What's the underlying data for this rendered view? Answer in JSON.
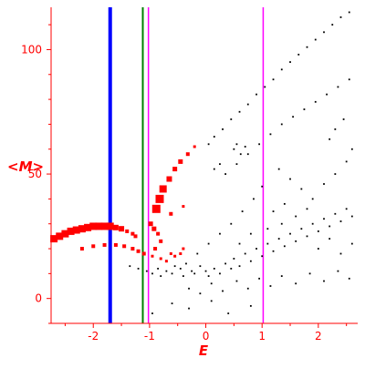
{
  "chart_data": {
    "type": "scatter",
    "title": "",
    "xlabel": "E",
    "ylabel": "<M>",
    "xlim": [
      -2.75,
      2.7
    ],
    "ylim": [
      -10,
      117
    ],
    "x_ticks": [
      -2,
      -1,
      0,
      1,
      2
    ],
    "y_ticks": [
      0,
      50,
      100
    ],
    "x_tick_labels": [
      "-2",
      "-1",
      "0",
      "1",
      "2"
    ],
    "y_tick_labels": [
      "0",
      "50",
      "100"
    ],
    "grid": false,
    "legend": "none",
    "colors": {
      "axes": "#ff0000",
      "black_points": "#000000",
      "red_points": "#ff0000",
      "blue_line": "#0000ff",
      "green_line": "#008000",
      "magenta_line": "#ff00ff"
    },
    "vertical_lines": [
      {
        "x": -1.7,
        "color": "#0000ff",
        "width": 4
      },
      {
        "x": -1.12,
        "color": "#008000",
        "width": 2
      },
      {
        "x": -1.02,
        "color": "#ff00ff",
        "width": 1.5
      },
      {
        "x": 1.02,
        "color": "#ff00ff",
        "width": 1.5
      }
    ],
    "series": [
      {
        "color": "#ff0000",
        "style": "dotted lower arc",
        "points": [
          {
            "x": -2.7,
            "y": 24,
            "size": 4
          },
          {
            "x": -2.6,
            "y": 25,
            "size": 4
          },
          {
            "x": -2.5,
            "y": 26,
            "size": 4
          },
          {
            "x": -2.4,
            "y": 27,
            "size": 4
          },
          {
            "x": -2.3,
            "y": 27.5,
            "size": 4
          },
          {
            "x": -2.2,
            "y": 28,
            "size": 4
          },
          {
            "x": -2.1,
            "y": 28.5,
            "size": 4
          },
          {
            "x": -2.0,
            "y": 29,
            "size": 4
          },
          {
            "x": -1.9,
            "y": 29,
            "size": 4
          },
          {
            "x": -1.8,
            "y": 29,
            "size": 4
          },
          {
            "x": -1.7,
            "y": 29,
            "size": 4
          },
          {
            "x": -1.6,
            "y": 28.5,
            "size": 3
          },
          {
            "x": -1.5,
            "y": 28,
            "size": 3
          },
          {
            "x": -1.4,
            "y": 27,
            "size": 2
          },
          {
            "x": -1.3,
            "y": 26,
            "size": 2
          },
          {
            "x": -1.25,
            "y": 25,
            "size": 2
          },
          {
            "x": -2.2,
            "y": 20,
            "size": 2
          },
          {
            "x": -2.0,
            "y": 21,
            "size": 2
          },
          {
            "x": -1.8,
            "y": 21.5,
            "size": 2
          },
          {
            "x": -1.6,
            "y": 21.5,
            "size": 2
          },
          {
            "x": -1.45,
            "y": 21,
            "size": 2
          },
          {
            "x": -1.3,
            "y": 20,
            "size": 2
          },
          {
            "x": -1.2,
            "y": 19,
            "size": 2
          },
          {
            "x": -1.1,
            "y": 18,
            "size": 2
          },
          {
            "x": -0.95,
            "y": 17,
            "size": 1.5
          },
          {
            "x": -0.8,
            "y": 16,
            "size": 1.5
          },
          {
            "x": -0.7,
            "y": 15,
            "size": 1.5
          },
          {
            "x": -0.55,
            "y": 17,
            "size": 1.5
          }
        ]
      },
      {
        "color": "#ff0000",
        "style": "large rising branch",
        "points": [
          {
            "x": -0.88,
            "y": 36,
            "size": 4.5
          },
          {
            "x": -0.82,
            "y": 40,
            "size": 4.5
          },
          {
            "x": -0.76,
            "y": 44,
            "size": 4
          },
          {
            "x": -0.65,
            "y": 48,
            "size": 3
          },
          {
            "x": -0.55,
            "y": 52,
            "size": 2.5
          },
          {
            "x": -0.45,
            "y": 55,
            "size": 2.5
          },
          {
            "x": -0.32,
            "y": 58,
            "size": 2
          },
          {
            "x": -0.2,
            "y": 61,
            "size": 1.5
          },
          {
            "x": -0.62,
            "y": 34,
            "size": 2
          },
          {
            "x": -0.4,
            "y": 37,
            "size": 1.5
          },
          {
            "x": -0.98,
            "y": 30,
            "size": 2.5
          },
          {
            "x": -0.92,
            "y": 28,
            "size": 2.5
          },
          {
            "x": -0.85,
            "y": 26,
            "size": 2
          },
          {
            "x": -0.8,
            "y": 23,
            "size": 2
          },
          {
            "x": -0.9,
            "y": 20,
            "size": 2
          },
          {
            "x": -0.4,
            "y": 20,
            "size": 1.5
          },
          {
            "x": -0.62,
            "y": 18,
            "size": 1.5
          },
          {
            "x": -0.45,
            "y": 18,
            "size": 1.5
          }
        ]
      },
      {
        "color": "#000000",
        "style": "scattered small points",
        "points": [
          {
            "x": -1.35,
            "y": 13
          },
          {
            "x": -1.2,
            "y": 12
          },
          {
            "x": -1.05,
            "y": 11
          },
          {
            "x": -0.95,
            "y": 10
          },
          {
            "x": -0.85,
            "y": 12
          },
          {
            "x": -0.8,
            "y": 9
          },
          {
            "x": -0.7,
            "y": 11
          },
          {
            "x": -0.6,
            "y": 10
          },
          {
            "x": -0.55,
            "y": 13
          },
          {
            "x": -0.45,
            "y": 12
          },
          {
            "x": -0.4,
            "y": 9
          },
          {
            "x": -0.35,
            "y": 14
          },
          {
            "x": -0.25,
            "y": 11
          },
          {
            "x": -0.2,
            "y": 10
          },
          {
            "x": -0.1,
            "y": 13
          },
          {
            "x": 0.0,
            "y": 11
          },
          {
            "x": 0.05,
            "y": 9
          },
          {
            "x": 0.15,
            "y": 12
          },
          {
            "x": 0.25,
            "y": 10
          },
          {
            "x": 0.35,
            "y": 14
          },
          {
            "x": 0.45,
            "y": 12
          },
          {
            "x": 0.5,
            "y": 16
          },
          {
            "x": 0.6,
            "y": 13
          },
          {
            "x": 0.7,
            "y": 18
          },
          {
            "x": 0.8,
            "y": 15
          },
          {
            "x": 0.9,
            "y": 20
          },
          {
            "x": 1.0,
            "y": 17
          },
          {
            "x": 1.1,
            "y": 22
          },
          {
            "x": 1.2,
            "y": 19
          },
          {
            "x": 1.3,
            "y": 24
          },
          {
            "x": 1.4,
            "y": 21
          },
          {
            "x": 1.5,
            "y": 26
          },
          {
            "x": 1.6,
            "y": 23
          },
          {
            "x": 1.7,
            "y": 28
          },
          {
            "x": 1.8,
            "y": 25
          },
          {
            "x": 1.9,
            "y": 30
          },
          {
            "x": 2.0,
            "y": 27
          },
          {
            "x": 2.1,
            "y": 32
          },
          {
            "x": 2.2,
            "y": 29
          },
          {
            "x": 2.3,
            "y": 34
          },
          {
            "x": 2.4,
            "y": 31
          },
          {
            "x": 2.5,
            "y": 36
          },
          {
            "x": 2.6,
            "y": 33
          },
          {
            "x": -0.3,
            "y": 4
          },
          {
            "x": -0.1,
            "y": 2
          },
          {
            "x": 0.1,
            "y": 6
          },
          {
            "x": 0.3,
            "y": 3
          },
          {
            "x": 0.55,
            "y": 7
          },
          {
            "x": 0.75,
            "y": 4
          },
          {
            "x": 0.95,
            "y": 8
          },
          {
            "x": 1.15,
            "y": 5
          },
          {
            "x": 1.35,
            "y": 9
          },
          {
            "x": 1.6,
            "y": 6
          },
          {
            "x": 1.85,
            "y": 10
          },
          {
            "x": 2.1,
            "y": 7
          },
          {
            "x": 2.35,
            "y": 11
          },
          {
            "x": 2.55,
            "y": 8
          },
          {
            "x": -0.6,
            "y": -2
          },
          {
            "x": -0.3,
            "y": -4
          },
          {
            "x": 0.1,
            "y": -1
          },
          {
            "x": 0.4,
            "y": -6
          },
          {
            "x": 0.8,
            "y": -3
          },
          {
            "x": -0.95,
            "y": -6
          },
          {
            "x": 0.05,
            "y": 62
          },
          {
            "x": 0.15,
            "y": 65
          },
          {
            "x": 0.3,
            "y": 68
          },
          {
            "x": 0.45,
            "y": 72
          },
          {
            "x": 0.6,
            "y": 75
          },
          {
            "x": 0.75,
            "y": 78
          },
          {
            "x": 0.9,
            "y": 82
          },
          {
            "x": 1.05,
            "y": 85
          },
          {
            "x": 1.2,
            "y": 88
          },
          {
            "x": 1.35,
            "y": 92
          },
          {
            "x": 1.5,
            "y": 95
          },
          {
            "x": 1.65,
            "y": 98
          },
          {
            "x": 1.8,
            "y": 101
          },
          {
            "x": 1.95,
            "y": 104
          },
          {
            "x": 2.1,
            "y": 107
          },
          {
            "x": 2.25,
            "y": 110
          },
          {
            "x": 2.4,
            "y": 113
          },
          {
            "x": 2.55,
            "y": 115
          },
          {
            "x": 0.35,
            "y": 50
          },
          {
            "x": 0.55,
            "y": 54
          },
          {
            "x": 0.75,
            "y": 58
          },
          {
            "x": 0.95,
            "y": 62
          },
          {
            "x": 1.15,
            "y": 66
          },
          {
            "x": 1.35,
            "y": 70
          },
          {
            "x": 1.55,
            "y": 73
          },
          {
            "x": 1.75,
            "y": 76
          },
          {
            "x": 1.95,
            "y": 79
          },
          {
            "x": 2.15,
            "y": 82
          },
          {
            "x": 2.35,
            "y": 85
          },
          {
            "x": 2.55,
            "y": 88
          },
          {
            "x": 0.5,
            "y": 60
          },
          {
            "x": 0.55,
            "y": 62
          },
          {
            "x": 0.62,
            "y": 58
          },
          {
            "x": 0.7,
            "y": 61
          },
          {
            "x": 0.25,
            "y": 54
          },
          {
            "x": 0.15,
            "y": 52
          },
          {
            "x": 1.3,
            "y": 52
          },
          {
            "x": 1.5,
            "y": 48
          },
          {
            "x": 1.7,
            "y": 44
          },
          {
            "x": 1.9,
            "y": 40
          },
          {
            "x": 2.1,
            "y": 46
          },
          {
            "x": 2.3,
            "y": 50
          },
          {
            "x": 2.5,
            "y": 55
          },
          {
            "x": 2.6,
            "y": 60
          },
          {
            "x": 2.45,
            "y": 72
          },
          {
            "x": 2.3,
            "y": 68
          },
          {
            "x": 2.2,
            "y": 64
          },
          {
            "x": 1.0,
            "y": 45
          },
          {
            "x": 0.85,
            "y": 40
          },
          {
            "x": 0.65,
            "y": 35
          },
          {
            "x": 0.45,
            "y": 30
          },
          {
            "x": 0.25,
            "y": 26
          },
          {
            "x": 0.05,
            "y": 22
          },
          {
            "x": -0.15,
            "y": 18
          },
          {
            "x": 1.2,
            "y": 35
          },
          {
            "x": 1.4,
            "y": 38
          },
          {
            "x": 1.6,
            "y": 33
          },
          {
            "x": 1.8,
            "y": 36
          },
          {
            "x": 2.0,
            "y": 20
          },
          {
            "x": 2.2,
            "y": 24
          },
          {
            "x": 2.4,
            "y": 18
          },
          {
            "x": 2.6,
            "y": 22
          },
          {
            "x": 0.6,
            "y": 22
          },
          {
            "x": 0.8,
            "y": 26
          },
          {
            "x": 1.1,
            "y": 28
          },
          {
            "x": 1.35,
            "y": 30
          }
        ]
      }
    ]
  }
}
